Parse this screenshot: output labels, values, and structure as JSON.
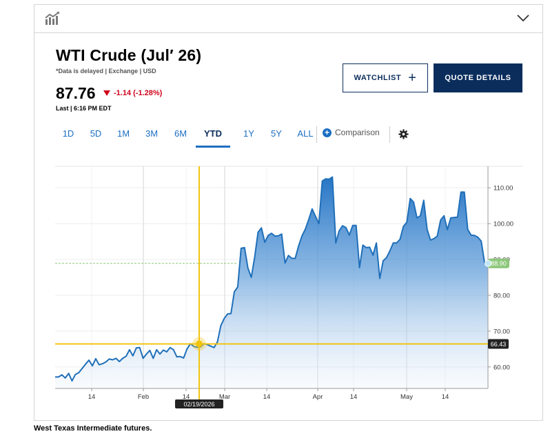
{
  "card": {
    "title": "WTI Crude (Jul′ 26)",
    "subtitle": "*Data is delayed | Exchange | USD",
    "price": "87.76",
    "change": "-1.14 (-1.28%)",
    "last_label": "Last | 6:16 PM EDT",
    "watchlist_label": "WATCHLIST",
    "quote_label": "QUOTE DETAILS",
    "comparison_label": "Comparison"
  },
  "ranges": [
    {
      "label": "1D",
      "active": false
    },
    {
      "label": "5D",
      "active": false
    },
    {
      "label": "1M",
      "active": false
    },
    {
      "label": "3M",
      "active": false
    },
    {
      "label": "6M",
      "active": false
    },
    {
      "label": "YTD",
      "active": true
    },
    {
      "label": "1Y",
      "active": false
    },
    {
      "label": "5Y",
      "active": false
    },
    {
      "label": "ALL",
      "active": false
    }
  ],
  "colors": {
    "navy": "#0a2d5c",
    "accent_blue": "#1b6ec2",
    "down_red": "#d0021b",
    "crosshair": "#f2c40f",
    "last_badge": "#8ec77b"
  },
  "caption": "West Texas Intermediate futures.",
  "chart_data": {
    "type": "area",
    "x_tick_labels": [
      "14",
      "Feb",
      "14",
      "Mar",
      "14",
      "Apr",
      "14",
      "May",
      "14"
    ],
    "y_tick_labels": [
      "110.00",
      "100.00",
      "90.00",
      "80.00",
      "70.00",
      "60.00"
    ],
    "ylim": [
      54,
      116
    ],
    "grid": true,
    "values": [
      57.2,
      57.2,
      57.8,
      56.9,
      58.2,
      56.1,
      57.9,
      58.4,
      59.6,
      60.8,
      61.9,
      60.3,
      62.3,
      60.6,
      60.9,
      61.4,
      62.2,
      62.0,
      62.4,
      61.5,
      62.4,
      63.0,
      64.8,
      63.1,
      65.3,
      65.4,
      62.4,
      63.6,
      64.6,
      62.4,
      64.8,
      63.6,
      64.7,
      64.2,
      65.4,
      64.8,
      62.8,
      62.9,
      62.5,
      65.0,
      66.5,
      65.7,
      65.5,
      65.6,
      66.5,
      66.2,
      65.8,
      65.4,
      67.0,
      71.5,
      73.5,
      74.8,
      74.9,
      81.0,
      82.3,
      93.1,
      93.3,
      87.6,
      85.0,
      90.6,
      97.6,
      98.8,
      94.8,
      96.7,
      97.3,
      96.5,
      96.6,
      97.1,
      89.0,
      91.1,
      90.3,
      90.3,
      93.8,
      96.6,
      98.5,
      101.2,
      104.1,
      102.0,
      100.0,
      111.9,
      112.5,
      112.4,
      113.0,
      94.6,
      98.0,
      99.4,
      98.9,
      96.8,
      99.5,
      99.5,
      87.7,
      94.0,
      93.3,
      93.4,
      91.2,
      94.6,
      84.7,
      89.6,
      90.5,
      92.4,
      94.6,
      94.6,
      95.6,
      99.2,
      100.4,
      107.0,
      106.0,
      101.6,
      102.2,
      106.5,
      98.4,
      95.4,
      95.8,
      96.5,
      101.0,
      102.2,
      98.3,
      101.6,
      101.7,
      101.8,
      108.8,
      108.8,
      98.4,
      96.8,
      96.7,
      96.2,
      95.1,
      89.0,
      88.9
    ],
    "last_value_label": "88.90",
    "reference_line_value": 88.9,
    "crosshair": {
      "date_label": "02/19/2026",
      "value_label": "66.43",
      "value": 66.43
    }
  }
}
